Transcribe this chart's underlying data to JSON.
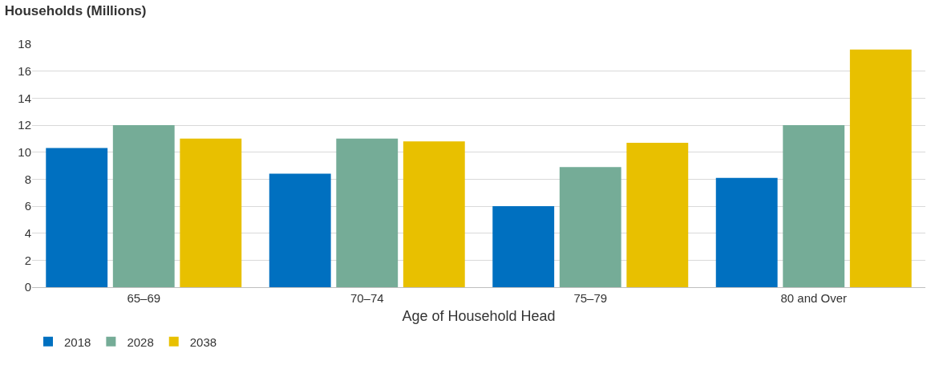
{
  "chart_data": {
    "type": "bar",
    "title": "Households (Millions)",
    "xlabel": "Age of Household Head",
    "categories": [
      "65–69",
      "70–74",
      "75–79",
      "80 and Over"
    ],
    "series": [
      {
        "name": "2018",
        "color": "#0070c0",
        "values": [
          10.3,
          8.4,
          6.0,
          8.1
        ]
      },
      {
        "name": "2028",
        "color": "#75ac97",
        "values": [
          12.0,
          11.0,
          8.9,
          12.0
        ]
      },
      {
        "name": "2038",
        "color": "#e8c000",
        "values": [
          11.0,
          10.8,
          10.7,
          17.6
        ]
      }
    ],
    "ylim": [
      0,
      18
    ],
    "yticks": [
      0,
      2,
      4,
      6,
      8,
      10,
      12,
      14,
      16,
      18
    ],
    "grid": "y",
    "legend": "bottom left"
  }
}
